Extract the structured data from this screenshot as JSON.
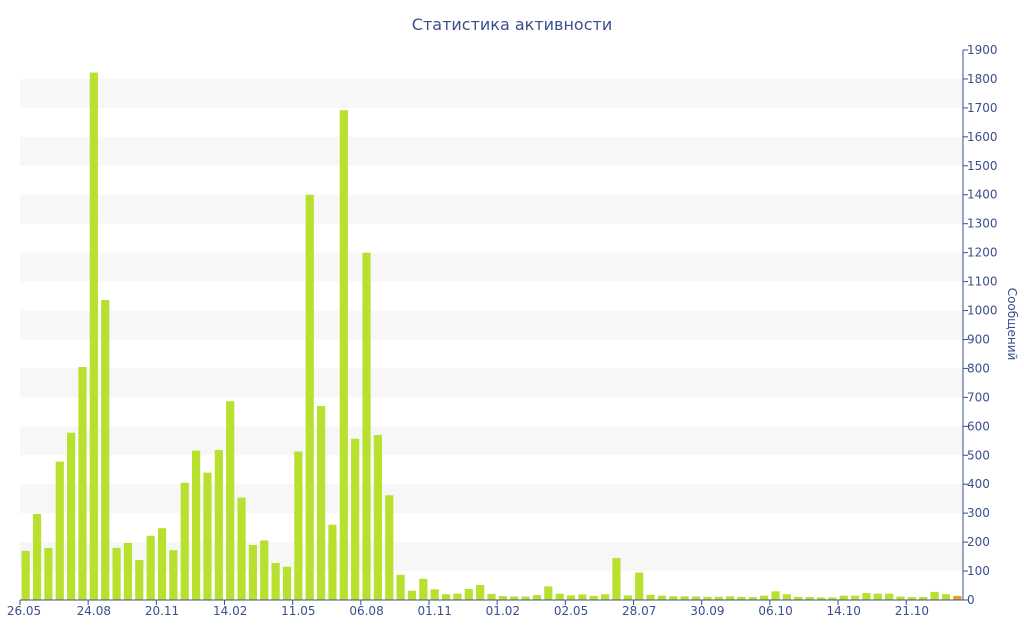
{
  "chart_data": {
    "type": "bar",
    "title": "Статистика активности",
    "ylabel": "Сообщений",
    "ylim": [
      0,
      1900
    ],
    "yticks": [
      0,
      100,
      200,
      300,
      400,
      500,
      600,
      700,
      800,
      900,
      1000,
      1100,
      1200,
      1300,
      1400,
      1500,
      1600,
      1700,
      1800,
      1900
    ],
    "y_axis_side": "right",
    "grid": "alternating horizontal bands",
    "x_tick_labels": [
      {
        "label": "26.05",
        "index": 0
      },
      {
        "label": "24.08",
        "index": 6
      },
      {
        "label": "20.11",
        "index": 12
      },
      {
        "label": "14.02",
        "index": 18
      },
      {
        "label": "11.05",
        "index": 24
      },
      {
        "label": "06.08",
        "index": 30
      },
      {
        "label": "01.11",
        "index": 36
      },
      {
        "label": "01.02",
        "index": 42
      },
      {
        "label": "02.05",
        "index": 48
      },
      {
        "label": "28.07",
        "index": 54
      },
      {
        "label": "30.09",
        "index": 60
      },
      {
        "label": "06.10",
        "index": 66
      },
      {
        "label": "14.10",
        "index": 72
      },
      {
        "label": "21.10",
        "index": 78
      }
    ],
    "values": [
      170,
      297,
      180,
      478,
      578,
      805,
      1822,
      1036,
      180,
      197,
      138,
      222,
      248,
      172,
      405,
      516,
      440,
      518,
      687,
      354,
      190,
      206,
      128,
      115,
      513,
      1400,
      670,
      260,
      1692,
      557,
      1200,
      570,
      362,
      87,
      32,
      73,
      37,
      20,
      22,
      38,
      52,
      21,
      14,
      12,
      12,
      17,
      47,
      22,
      16,
      19,
      14,
      20,
      145,
      16,
      95,
      18,
      15,
      13,
      13,
      12,
      11,
      11,
      13,
      11,
      10,
      15,
      30,
      20,
      11,
      10,
      9,
      9,
      15,
      15,
      24,
      22,
      22,
      12,
      10,
      10,
      28,
      20,
      14
    ],
    "colors": {
      "bar": "#b8e02e",
      "bar_highlight": "#e8a020",
      "axis": "#3b4f8c",
      "band": "#f7f7f7"
    }
  }
}
